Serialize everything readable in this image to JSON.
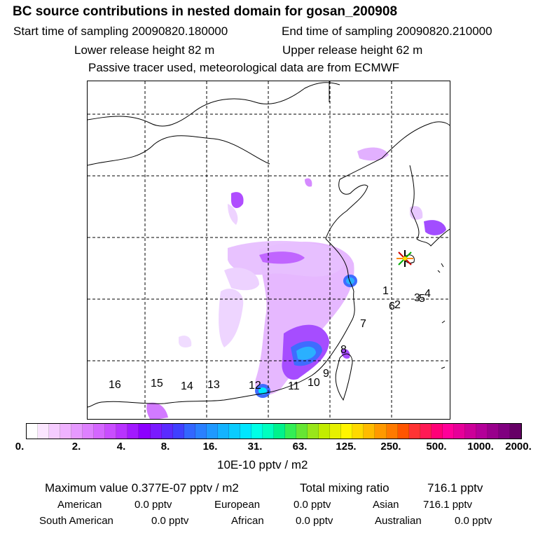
{
  "header": {
    "title": "BC  source contributions in nested domain for gosan_200908",
    "start_label": "Start time of sampling 20090820.180000",
    "end_label": "End time of sampling 20090820.210000",
    "lower_label": "Lower release height   82 m",
    "upper_label": "Upper release height   62 m",
    "note": "Passive tracer used, meteorological data are from ECMWF"
  },
  "map": {
    "site_marker": "star-marker-icon",
    "region_labels": [
      "1",
      "2",
      "3",
      "4",
      "6",
      "5",
      "7",
      "8",
      "9",
      "10",
      "11",
      "12",
      "13",
      "14",
      "15",
      "16"
    ]
  },
  "colorbar": {
    "ticks": [
      "0.",
      "2.",
      "4.",
      "8.",
      "16.",
      "31.",
      "63.",
      "125.",
      "250.",
      "500.",
      "1000.",
      "2000."
    ],
    "colors": [
      "#ffffff",
      "#fbe6ff",
      "#f5ccff",
      "#efb2ff",
      "#e699ff",
      "#de80ff",
      "#d466ff",
      "#c94dff",
      "#b833ff",
      "#a21aff",
      "#8c00ff",
      "#7a1aff",
      "#5a2bff",
      "#4040ff",
      "#3366ff",
      "#2a80ff",
      "#1f99ff",
      "#14b3ff",
      "#0accff",
      "#00e6ff",
      "#00ffe6",
      "#00ffbf",
      "#00f28c",
      "#33ee55",
      "#66e633",
      "#99e61a",
      "#c2ec00",
      "#e6f000",
      "#fff500",
      "#ffd900",
      "#ffbb00",
      "#ff9900",
      "#ff7a00",
      "#ff5500",
      "#ff3333",
      "#ff1a55",
      "#ff0077",
      "#ff0099",
      "#e60099",
      "#cc0099",
      "#b30099",
      "#99008c",
      "#800080",
      "#660066"
    ],
    "units": "10E-10 pptv / m2"
  },
  "footer": {
    "max_label": "Maximum value  0.377E-07 pptv / m2",
    "total_label": "Total mixing ratio",
    "total_value": "716.1 pptv",
    "american_label": "American",
    "american_value": "0.0 pptv",
    "european_label": "European",
    "european_value": "0.0 pptv",
    "asian_label": "Asian",
    "asian_value": "716.1 pptv",
    "south_american_label": "South American",
    "south_american_value": "0.0 pptv",
    "african_label": "African",
    "african_value": "0.0 pptv",
    "australian_label": "Australian",
    "australian_value": "0.0 pptv"
  }
}
